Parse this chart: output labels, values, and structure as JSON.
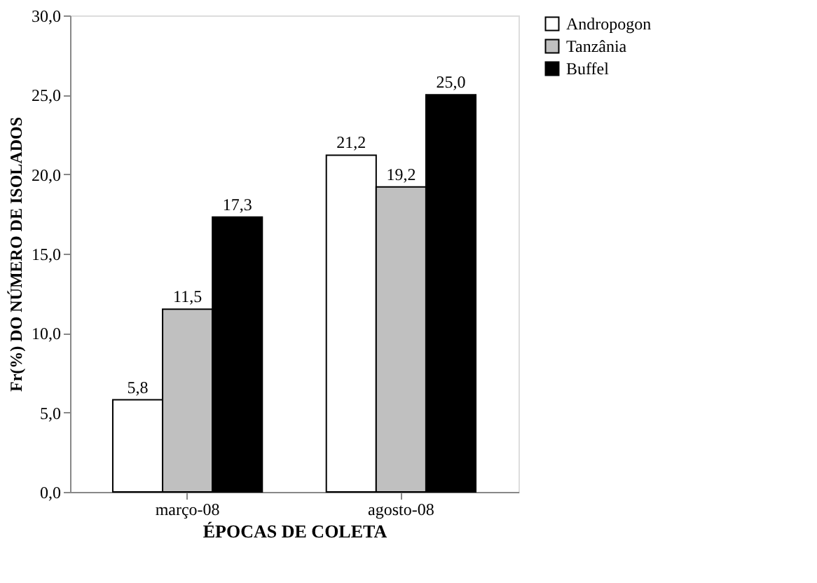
{
  "chart_data": {
    "type": "bar",
    "xlabel": "ÉPOCAS DE COLETA",
    "ylabel": "Fr(%) DO NÚMERO DE ISOLADOS",
    "categories": [
      "março-08",
      "agosto-08"
    ],
    "series": [
      {
        "name": "Andropogon",
        "color": "#ffffff",
        "values": [
          5.8,
          21.2
        ],
        "value_labels": [
          "5,8",
          "21,2"
        ]
      },
      {
        "name": "Tanzânia",
        "color": "#c0c0c0",
        "values": [
          11.5,
          19.2
        ],
        "value_labels": [
          "11,5",
          "19,2"
        ]
      },
      {
        "name": "Buffel",
        "color": "#000000",
        "values": [
          17.3,
          25.0
        ],
        "value_labels": [
          "17,3",
          "25,0"
        ]
      }
    ],
    "ylim": [
      0,
      30
    ],
    "yticks": [
      {
        "value": 0,
        "label": "0,0"
      },
      {
        "value": 5,
        "label": "5,0"
      },
      {
        "value": 10,
        "label": "10,0"
      },
      {
        "value": 15,
        "label": "15,0"
      },
      {
        "value": 20,
        "label": "20,0"
      },
      {
        "value": 25,
        "label": "25,0"
      },
      {
        "value": 30,
        "label": "30,0"
      }
    ],
    "grid": false,
    "legend": "right"
  }
}
